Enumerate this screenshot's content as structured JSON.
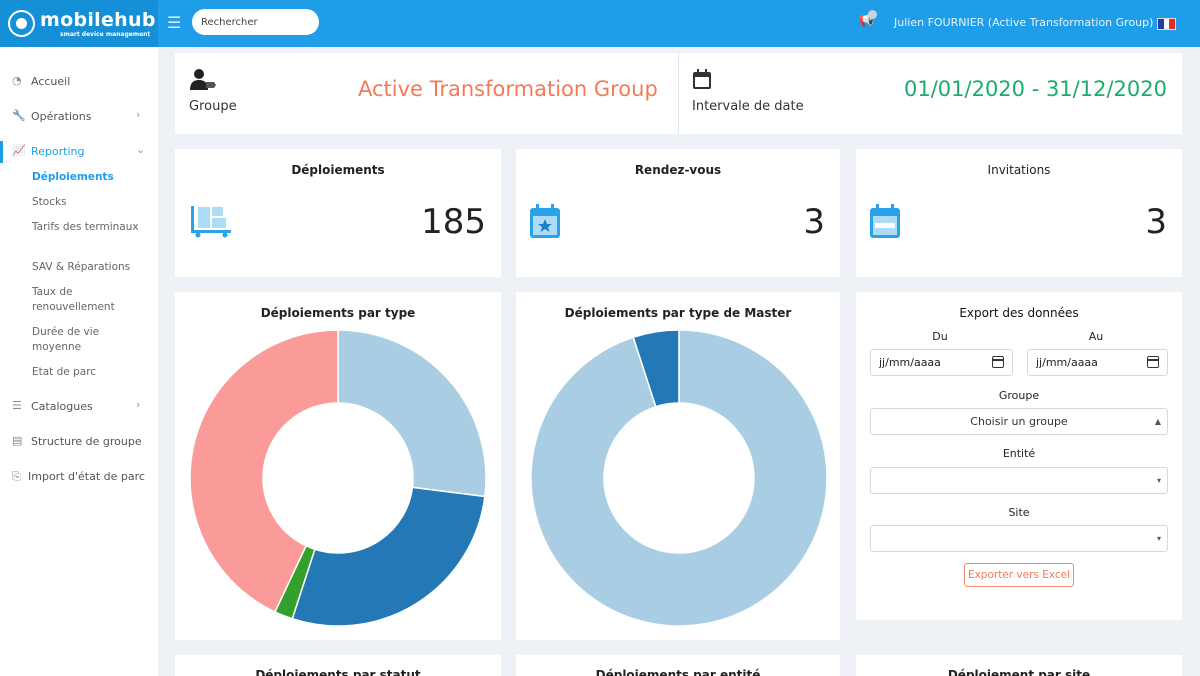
{
  "app": {
    "logo_name": "mobilehub",
    "logo_tagline": "smart device management",
    "search_placeholder": "Rechercher",
    "user": "Julien FOURNIER (Active Transformation Group)",
    "colors": {
      "primary": "#1e9ee8",
      "orange": "#f37a56",
      "green": "#1bab6c"
    }
  },
  "sidebar": {
    "accueil": "Accueil",
    "operations": "Opérations",
    "reporting": "Reporting",
    "sub": [
      "Déploiements",
      "Stocks",
      "Tarifs des terminaux",
      "SAV & Réparations",
      "Taux de renouvellement",
      "Durée de vie moyenne",
      "Etat de parc"
    ],
    "catalogues": "Catalogues",
    "structure": "Structure de groupe",
    "import": "Import d'état de parc"
  },
  "header": {
    "group_label": "Groupe",
    "group_value": "Active Transformation Group",
    "date_label": "Intervale de date",
    "date_value": "01/01/2020 - 31/12/2020"
  },
  "stats": {
    "deployments": {
      "title": "Déploiements",
      "value": "185",
      "icon": "truck-dolly-icon"
    },
    "appointments": {
      "title": "Rendez-vous",
      "value": "3",
      "icon": "calendar-star-icon"
    },
    "invitations": {
      "title": "Invitations",
      "value": "3",
      "icon": "calendar-icon"
    }
  },
  "charts": {
    "type_title": "Déploiements par type",
    "master_title": "Déploiements par type de Master",
    "bottom_titles": [
      "Déploiements par statut",
      "Déploiements par entité",
      "Déploiement par site"
    ]
  },
  "chart_data": [
    {
      "type": "pie",
      "title": "Déploiements par type",
      "values": [
        27,
        28,
        2,
        43
      ],
      "colors": [
        "#a9cde3",
        "#2378b5",
        "#33a02c",
        "#fa9a99"
      ]
    },
    {
      "type": "pie",
      "title": "Déploiements par type de Master",
      "values": [
        95,
        5
      ],
      "colors": [
        "#a9cde3",
        "#2378b5"
      ]
    }
  ],
  "export": {
    "title": "Export des données",
    "from_label": "Du",
    "to_label": "Au",
    "date_placeholder": "jj/mm/aaaa",
    "group_label": "Groupe",
    "group_select": "Choisir un groupe",
    "entity_label": "Entité",
    "entity_select": "",
    "site_label": "Site",
    "site_select": "",
    "button": "Exporter vers Excel"
  }
}
